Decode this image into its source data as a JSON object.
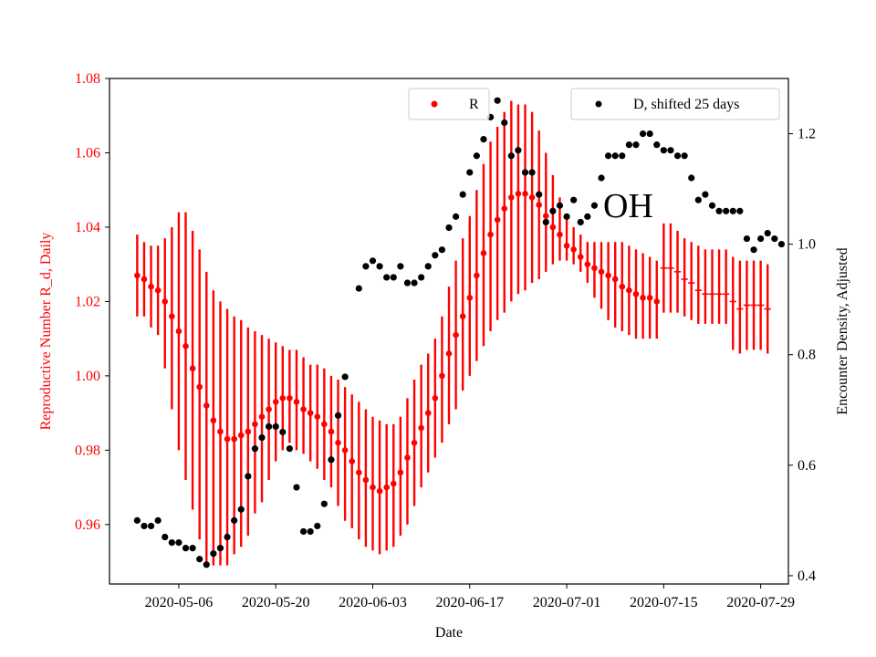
{
  "chart_data": {
    "type": "scatter",
    "xlabel": "Date",
    "ylabel_left": "Reproductive Number R_d, Daily",
    "ylabel_right": "Encounter Density, Adjusted",
    "annotation": "OH",
    "ylim_left": [
      0.944,
      1.08
    ],
    "ylim_right": [
      0.385,
      1.3
    ],
    "xlim": [
      "2020-04-26",
      "2020-08-02"
    ],
    "left_ticks": [
      0.96,
      0.98,
      1.0,
      1.02,
      1.04,
      1.06,
      1.08
    ],
    "left_tick_labels": [
      "0.96",
      "0.98",
      "1.00",
      "1.02",
      "1.04",
      "1.06",
      "1.08"
    ],
    "right_ticks": [
      0.4,
      0.6,
      0.8,
      1.0,
      1.2
    ],
    "right_tick_labels": [
      "0.4",
      "0.6",
      "0.8",
      "1.0",
      "1.2"
    ],
    "x_ticks": [
      "2020-05-06",
      "2020-05-20",
      "2020-06-03",
      "2020-06-17",
      "2020-07-01",
      "2020-07-15",
      "2020-07-29"
    ],
    "colors": {
      "r": "#ff0000",
      "d": "#000000",
      "left_axis": "#ff0000"
    },
    "series": [
      {
        "name": "R",
        "axis": "left",
        "start_date": "2020-04-30",
        "values": [
          1.027,
          1.026,
          1.024,
          1.023,
          1.02,
          1.016,
          1.012,
          1.008,
          1.002,
          0.997,
          0.992,
          0.988,
          0.985,
          0.983,
          0.983,
          0.984,
          0.985,
          0.987,
          0.989,
          0.991,
          0.993,
          0.994,
          0.994,
          0.993,
          0.991,
          0.99,
          0.989,
          0.987,
          0.985,
          0.982,
          0.98,
          0.977,
          0.974,
          0.972,
          0.97,
          0.969,
          0.97,
          0.971,
          0.974,
          0.978,
          0.982,
          0.986,
          0.99,
          0.994,
          1.0,
          1.006,
          1.011,
          1.016,
          1.021,
          1.027,
          1.033,
          1.038,
          1.042,
          1.045,
          1.048,
          1.049,
          1.049,
          1.048,
          1.046,
          1.043,
          1.04,
          1.038,
          1.035,
          1.034,
          1.032,
          1.03,
          1.029,
          1.028,
          1.027,
          1.026,
          1.024,
          1.023,
          1.022,
          1.021,
          1.021,
          1.02,
          1.029,
          1.029,
          1.028,
          1.026,
          1.025,
          1.023,
          1.022,
          1.022,
          1.022,
          1.022,
          1.02,
          1.018,
          1.019,
          1.019,
          1.019,
          1.018
        ],
        "lower": [
          1.016,
          1.016,
          1.013,
          1.011,
          1.002,
          0.991,
          0.98,
          0.972,
          0.964,
          0.956,
          0.95,
          0.949,
          0.949,
          0.949,
          0.952,
          0.954,
          0.957,
          0.963,
          0.966,
          0.972,
          0.977,
          0.98,
          0.982,
          0.98,
          0.979,
          0.977,
          0.975,
          0.972,
          0.97,
          0.965,
          0.961,
          0.959,
          0.956,
          0.954,
          0.953,
          0.952,
          0.953,
          0.954,
          0.957,
          0.96,
          0.965,
          0.97,
          0.974,
          0.978,
          0.982,
          0.987,
          0.991,
          0.996,
          1.0,
          1.004,
          1.008,
          1.012,
          1.015,
          1.017,
          1.02,
          1.022,
          1.023,
          1.025,
          1.026,
          1.028,
          1.03,
          1.031,
          1.031,
          1.03,
          1.028,
          1.025,
          1.021,
          1.018,
          1.015,
          1.013,
          1.012,
          1.011,
          1.01,
          1.01,
          1.01,
          1.01,
          1.017,
          1.017,
          1.017,
          1.016,
          1.015,
          1.014,
          1.014,
          1.014,
          1.014,
          1.014,
          1.007,
          1.006,
          1.007,
          1.007,
          1.007,
          1.006
        ],
        "upper": [
          1.038,
          1.036,
          1.035,
          1.035,
          1.037,
          1.04,
          1.044,
          1.044,
          1.039,
          1.034,
          1.028,
          1.023,
          1.02,
          1.018,
          1.016,
          1.015,
          1.013,
          1.012,
          1.011,
          1.01,
          1.009,
          1.008,
          1.007,
          1.007,
          1.005,
          1.003,
          1.003,
          1.002,
          1.0,
          0.999,
          0.997,
          0.995,
          0.993,
          0.991,
          0.989,
          0.988,
          0.987,
          0.987,
          0.989,
          0.994,
          0.999,
          1.003,
          1.006,
          1.01,
          1.016,
          1.024,
          1.031,
          1.037,
          1.043,
          1.05,
          1.057,
          1.063,
          1.067,
          1.071,
          1.074,
          1.073,
          1.073,
          1.071,
          1.066,
          1.06,
          1.054,
          1.048,
          1.043,
          1.04,
          1.038,
          1.036,
          1.036,
          1.036,
          1.036,
          1.036,
          1.036,
          1.035,
          1.034,
          1.033,
          1.032,
          1.031,
          1.041,
          1.041,
          1.039,
          1.037,
          1.036,
          1.035,
          1.034,
          1.034,
          1.034,
          1.034,
          1.032,
          1.031,
          1.031,
          1.031,
          1.031,
          1.03
        ],
        "capped_from_index": 76
      },
      {
        "name": "D, shifted 25 days",
        "axis": "right",
        "points": [
          [
            "2020-04-30",
            0.5
          ],
          [
            "2020-05-01",
            0.49
          ],
          [
            "2020-05-02",
            0.49
          ],
          [
            "2020-05-03",
            0.5
          ],
          [
            "2020-05-04",
            0.47
          ],
          [
            "2020-05-05",
            0.46
          ],
          [
            "2020-05-06",
            0.46
          ],
          [
            "2020-05-07",
            0.45
          ],
          [
            "2020-05-08",
            0.45
          ],
          [
            "2020-05-09",
            0.43
          ],
          [
            "2020-05-10",
            0.42
          ],
          [
            "2020-05-11",
            0.44
          ],
          [
            "2020-05-12",
            0.45
          ],
          [
            "2020-05-13",
            0.47
          ],
          [
            "2020-05-14",
            0.5
          ],
          [
            "2020-05-15",
            0.52
          ],
          [
            "2020-05-16",
            0.58
          ],
          [
            "2020-05-17",
            0.63
          ],
          [
            "2020-05-18",
            0.65
          ],
          [
            "2020-05-19",
            0.67
          ],
          [
            "2020-05-20",
            0.67
          ],
          [
            "2020-05-21",
            0.66
          ],
          [
            "2020-05-22",
            0.63
          ],
          [
            "2020-05-23",
            0.56
          ],
          [
            "2020-05-24",
            0.48
          ],
          [
            "2020-05-25",
            0.48
          ],
          [
            "2020-05-26",
            0.49
          ],
          [
            "2020-05-27",
            0.53
          ],
          [
            "2020-05-28",
            0.61
          ],
          [
            "2020-05-29",
            0.69
          ],
          [
            "2020-05-30",
            0.76
          ],
          [
            "2020-06-01",
            0.92
          ],
          [
            "2020-06-02",
            0.96
          ],
          [
            "2020-06-03",
            0.97
          ],
          [
            "2020-06-04",
            0.96
          ],
          [
            "2020-06-05",
            0.94
          ],
          [
            "2020-06-06",
            0.94
          ],
          [
            "2020-06-07",
            0.96
          ],
          [
            "2020-06-08",
            0.93
          ],
          [
            "2020-06-09",
            0.93
          ],
          [
            "2020-06-10",
            0.94
          ],
          [
            "2020-06-11",
            0.96
          ],
          [
            "2020-06-12",
            0.98
          ],
          [
            "2020-06-13",
            0.99
          ],
          [
            "2020-06-14",
            1.03
          ],
          [
            "2020-06-15",
            1.05
          ],
          [
            "2020-06-16",
            1.09
          ],
          [
            "2020-06-17",
            1.13
          ],
          [
            "2020-06-18",
            1.16
          ],
          [
            "2020-06-19",
            1.19
          ],
          [
            "2020-06-20",
            1.23
          ],
          [
            "2020-06-21",
            1.26
          ],
          [
            "2020-06-22",
            1.22
          ],
          [
            "2020-06-23",
            1.16
          ],
          [
            "2020-06-24",
            1.17
          ],
          [
            "2020-06-25",
            1.13
          ],
          [
            "2020-06-26",
            1.13
          ],
          [
            "2020-06-27",
            1.09
          ],
          [
            "2020-06-28",
            1.04
          ],
          [
            "2020-06-29",
            1.06
          ],
          [
            "2020-06-30",
            1.07
          ],
          [
            "2020-07-01",
            1.05
          ],
          [
            "2020-07-02",
            1.08
          ],
          [
            "2020-07-03",
            1.04
          ],
          [
            "2020-07-04",
            1.05
          ],
          [
            "2020-07-05",
            1.07
          ],
          [
            "2020-07-06",
            1.12
          ],
          [
            "2020-07-07",
            1.16
          ],
          [
            "2020-07-08",
            1.16
          ],
          [
            "2020-07-09",
            1.16
          ],
          [
            "2020-07-10",
            1.18
          ],
          [
            "2020-07-11",
            1.18
          ],
          [
            "2020-07-12",
            1.2
          ],
          [
            "2020-07-13",
            1.2
          ],
          [
            "2020-07-14",
            1.18
          ],
          [
            "2020-07-15",
            1.17
          ],
          [
            "2020-07-16",
            1.17
          ],
          [
            "2020-07-17",
            1.16
          ],
          [
            "2020-07-18",
            1.16
          ],
          [
            "2020-07-19",
            1.12
          ],
          [
            "2020-07-20",
            1.08
          ],
          [
            "2020-07-21",
            1.09
          ],
          [
            "2020-07-22",
            1.07
          ],
          [
            "2020-07-23",
            1.06
          ],
          [
            "2020-07-24",
            1.06
          ],
          [
            "2020-07-25",
            1.06
          ],
          [
            "2020-07-26",
            1.06
          ],
          [
            "2020-07-27",
            1.01
          ],
          [
            "2020-07-28",
            0.99
          ],
          [
            "2020-07-29",
            1.01
          ],
          [
            "2020-07-30",
            1.02
          ],
          [
            "2020-07-31",
            1.01
          ],
          [
            "2020-08-01",
            1.0
          ]
        ]
      }
    ],
    "legends": [
      {
        "label": "R",
        "placement": "top-center",
        "color": "#ff0000"
      },
      {
        "label": "D, shifted 25 days",
        "placement": "top-right",
        "color": "#000000"
      }
    ]
  }
}
